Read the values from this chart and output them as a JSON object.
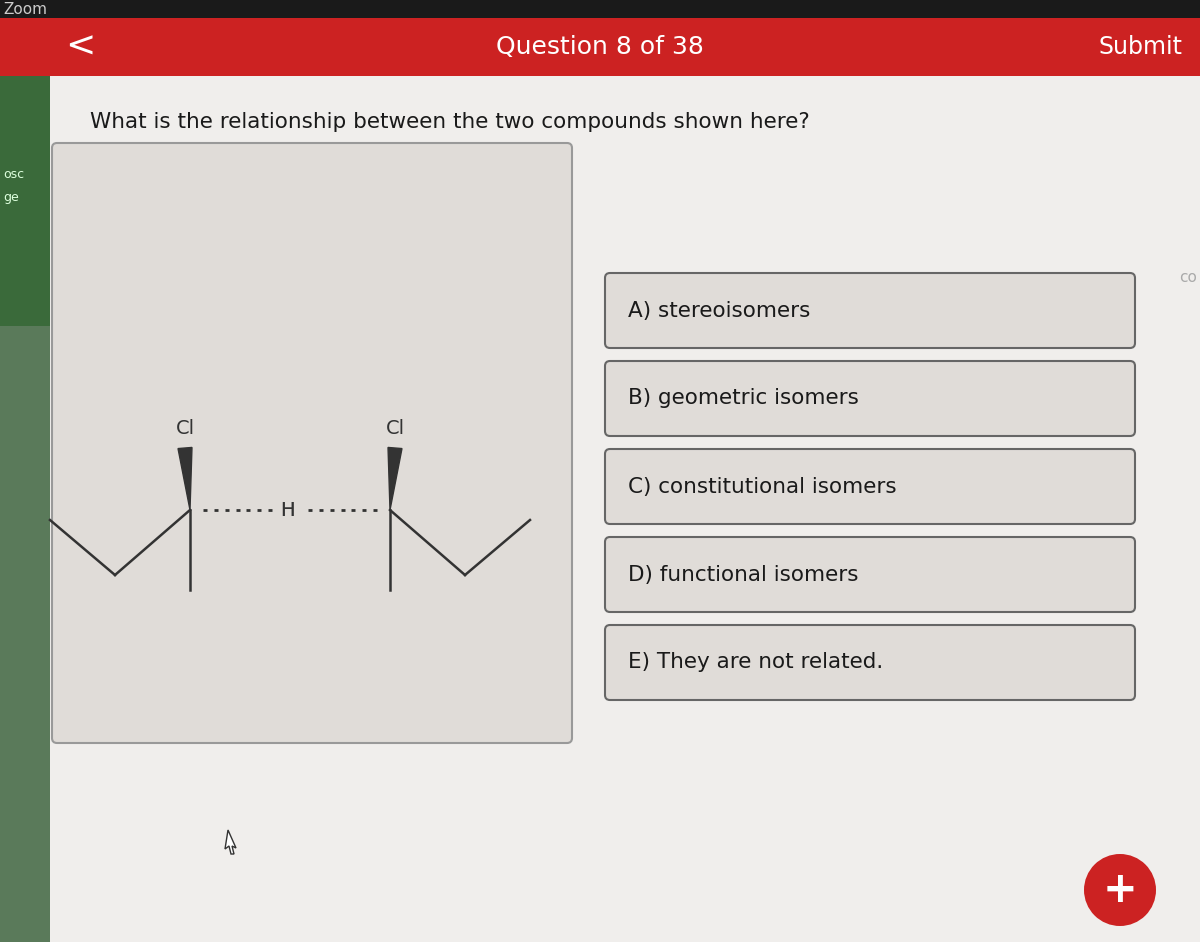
{
  "bg_color": "#cac6c2",
  "header_bg": "#cc2222",
  "header_text": "Question 8 of 38",
  "header_submit": "Submit",
  "header_text_color": "#ffffff",
  "question_text": "What is the relationship between the two compounds shown here?",
  "question_color": "#1a1a1a",
  "molecule_box_bg": "#e0dcd8",
  "molecule_box_border": "#999999",
  "options": [
    "A) stereoisomers",
    "B) geometric isomers",
    "C) constitutional isomers",
    "D) functional isomers",
    "E) They are not related."
  ],
  "option_bg": "#e0dcd8",
  "option_border": "#666666",
  "option_text_color": "#1a1a1a",
  "plus_button_color": "#cc2222",
  "plus_text_color": "#ffffff",
  "figsize": [
    12.0,
    9.42
  ],
  "dpi": 100
}
